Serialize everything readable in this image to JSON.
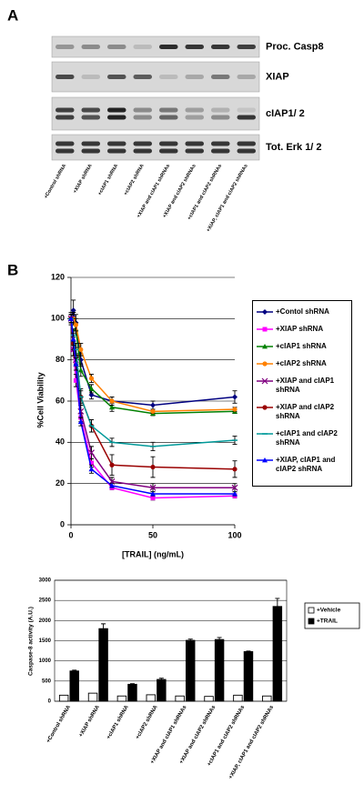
{
  "panel_a": {
    "label": "A",
    "rows": [
      "Proc. Casp8",
      "XIAP",
      "cIAP1/ 2",
      "Tot. Erk 1/ 2"
    ],
    "lanes": [
      "+Control shRNA",
      "+XIAP shRNA",
      "+cIAP1 shRNA",
      "+cIAP2 shRNA",
      "+XIAP and cIAP1 shRNAs",
      "+XIAP and cIAP2 shRNAs",
      "+cIAP1 and cIAP2 shRNAs",
      "+XIAP, cIAP1 and cIAP2 shRNAs"
    ]
  },
  "chart_data": [
    {
      "type": "line",
      "panel_label": "B",
      "x_label": "[TRAIL] (ng/mL)",
      "y_label": "%Cell Viability",
      "x": [
        0,
        1.5,
        3,
        6,
        12.5,
        25,
        50,
        100
      ],
      "xlim": [
        0,
        100
      ],
      "xticks": [
        0,
        50,
        100
      ],
      "ylim": [
        0,
        120
      ],
      "yticks": [
        0,
        20,
        40,
        60,
        80,
        100,
        120
      ],
      "grid": true,
      "series": [
        {
          "name": "+Contol shRNA",
          "color": "#000080",
          "marker": "diamond",
          "values": [
            100,
            104,
            98,
            80,
            63,
            60,
            58,
            62
          ],
          "errors": [
            3,
            5,
            4,
            3,
            2,
            2,
            2,
            3
          ]
        },
        {
          "name": "+XIAP shRNA",
          "color": "#ff00ff",
          "marker": "square",
          "values": [
            100,
            85,
            70,
            52,
            30,
            18,
            13,
            14
          ],
          "errors": [
            2,
            3,
            3,
            2,
            2,
            1,
            1,
            1
          ]
        },
        {
          "name": "+cIAP1 shRNA",
          "color": "#008000",
          "marker": "triangle",
          "values": [
            100,
            100,
            95,
            75,
            66,
            57,
            54,
            55
          ],
          "errors": [
            2,
            3,
            3,
            3,
            2,
            2,
            1,
            1
          ]
        },
        {
          "name": "+cIAP2 shRNA",
          "color": "#ff8000",
          "marker": "circle",
          "values": [
            100,
            100,
            97,
            85,
            71,
            60,
            55,
            56
          ],
          "errors": [
            2,
            3,
            3,
            3,
            2,
            2,
            1,
            1
          ]
        },
        {
          "name": "+XIAP and cIAP1 shRNA",
          "color": "#800080",
          "marker": "x",
          "values": [
            100,
            85,
            80,
            55,
            35,
            21,
            18,
            18
          ],
          "errors": [
            2,
            3,
            3,
            3,
            3,
            2,
            2,
            2
          ]
        },
        {
          "name": "+XIAP and cIAP2 shRNA",
          "color": "#990000",
          "marker": "circle",
          "values": [
            100,
            88,
            82,
            62,
            48,
            29,
            28,
            27
          ],
          "errors": [
            2,
            3,
            4,
            4,
            3,
            5,
            5,
            4
          ]
        },
        {
          "name": "+cIAP1 and cIAP2 shRNA",
          "color": "#009999",
          "marker": "dash",
          "values": [
            100,
            92,
            85,
            62,
            48,
            40,
            38,
            41
          ],
          "errors": [
            2,
            3,
            3,
            3,
            3,
            2,
            2,
            2
          ]
        },
        {
          "name": "+XIAP, cIAP1 and cIAP2 shRNA",
          "color": "#0000ff",
          "marker": "triangle",
          "values": [
            100,
            90,
            78,
            50,
            27,
            19,
            15,
            15
          ],
          "errors": [
            2,
            3,
            3,
            2,
            2,
            1,
            1,
            1
          ]
        }
      ]
    },
    {
      "type": "bar",
      "y_label": "Caspase-8 activity (A.U.)",
      "categories": [
        "+Control shRNA",
        "+XIAP shRNA",
        "+cIAP1 shRNA",
        "+cIAP2 shRNA",
        "+XIAP and cIAP1 shRNAs",
        "+XIAP and cIAP2 shRNAs",
        "+cIAP1 and cIAP2 shRNAs",
        "+XIAP, cIAP1 and cIAP2 shRNAs"
      ],
      "ylim": [
        0,
        3000
      ],
      "yticks": [
        0,
        500,
        1000,
        1500,
        2000,
        2500,
        3000
      ],
      "series": [
        {
          "name": "+Vehicle",
          "color": "#ffffff",
          "values": [
            150,
            200,
            130,
            160,
            130,
            120,
            150,
            130
          ]
        },
        {
          "name": "+TRAIL",
          "color": "#000000",
          "values": [
            750,
            1800,
            420,
            540,
            1510,
            1530,
            1230,
            2350
          ],
          "errors": [
            20,
            120,
            15,
            30,
            30,
            50,
            15,
            200
          ]
        }
      ]
    }
  ]
}
